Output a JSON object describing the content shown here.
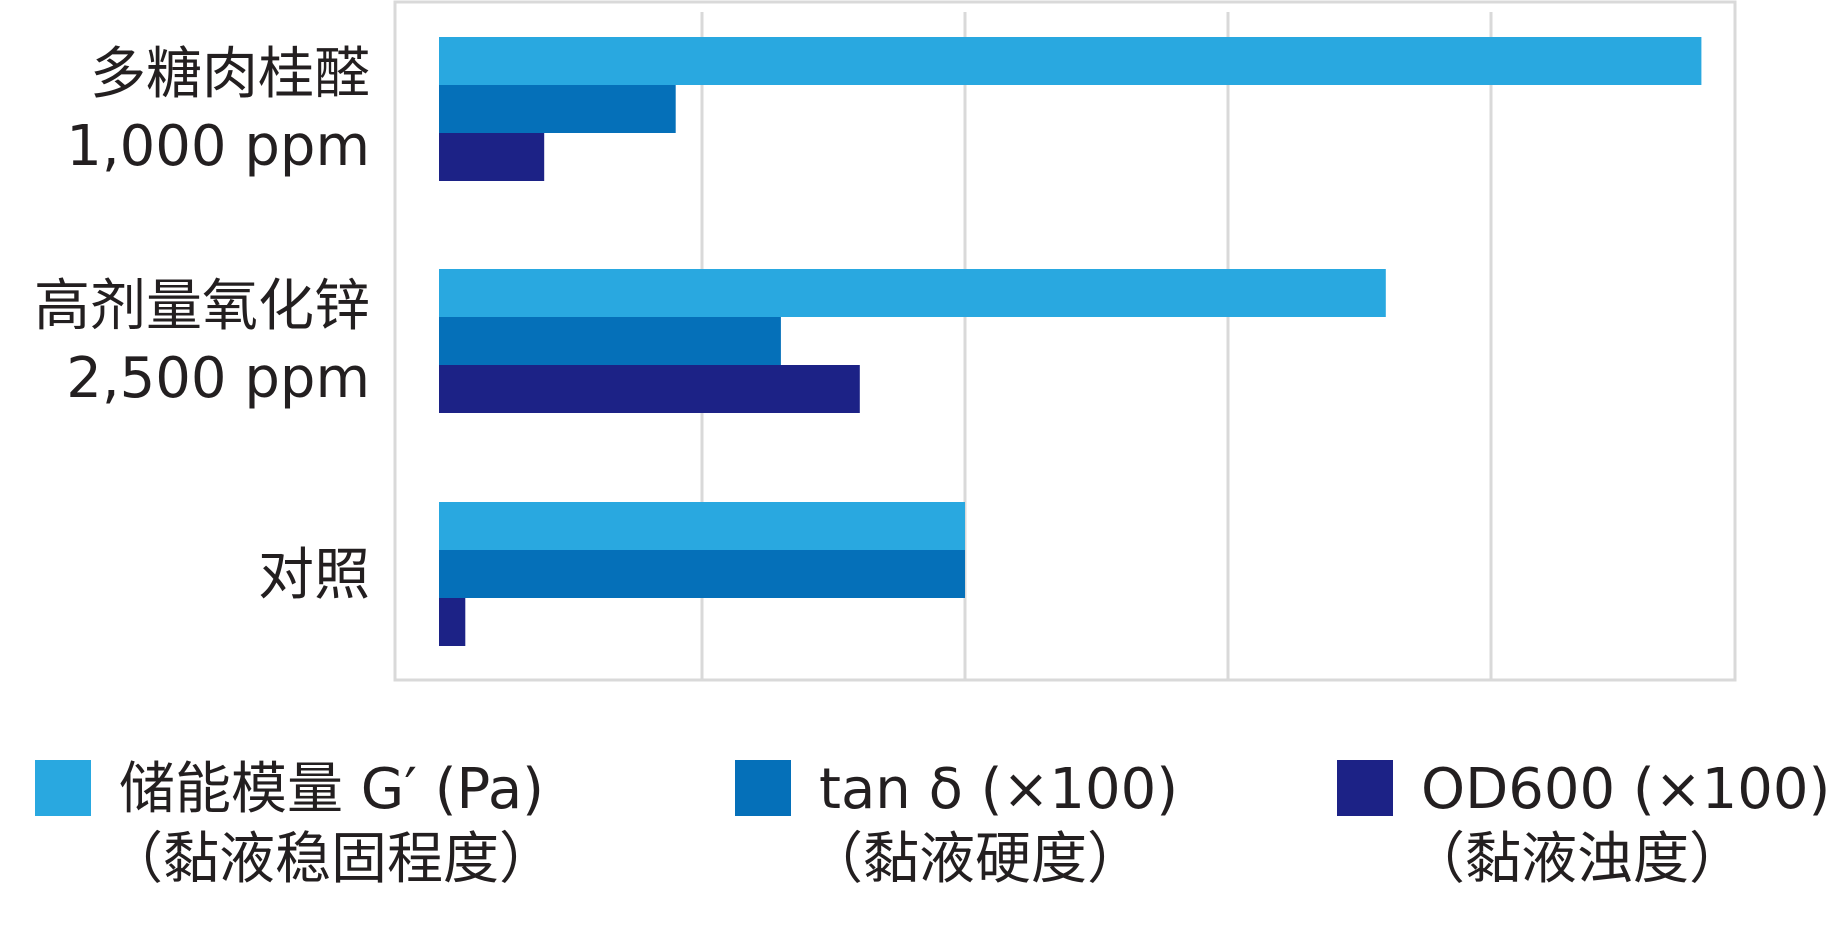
{
  "chart_data": {
    "type": "bar",
    "orientation": "horizontal",
    "categories": [
      [
        "多糖肉桂醛",
        "1,000 ppm"
      ],
      [
        "高剂量氧化锌",
        "2,500 ppm"
      ],
      [
        "对照"
      ]
    ],
    "series": [
      {
        "name": "储能模量 G′ (Pa)",
        "name_line2": "（黏液稳固程度）",
        "color": "#29a8e0",
        "values": [
          4.8,
          3.6,
          2.0
        ]
      },
      {
        "name": "tan δ (×100)",
        "name_line2": "（黏液硬度）",
        "color": "#0570b9",
        "values": [
          0.9,
          1.3,
          2.0
        ]
      },
      {
        "name": "OD600 (×100)",
        "name_line2": "（黏液浊度）",
        "color": "#1c2286",
        "values": [
          0.4,
          1.6,
          0.1
        ]
      }
    ],
    "xlim": [
      0,
      5
    ],
    "grid": true,
    "legend": "bottom",
    "xlabel": "",
    "ylabel": "",
    "title": ""
  }
}
